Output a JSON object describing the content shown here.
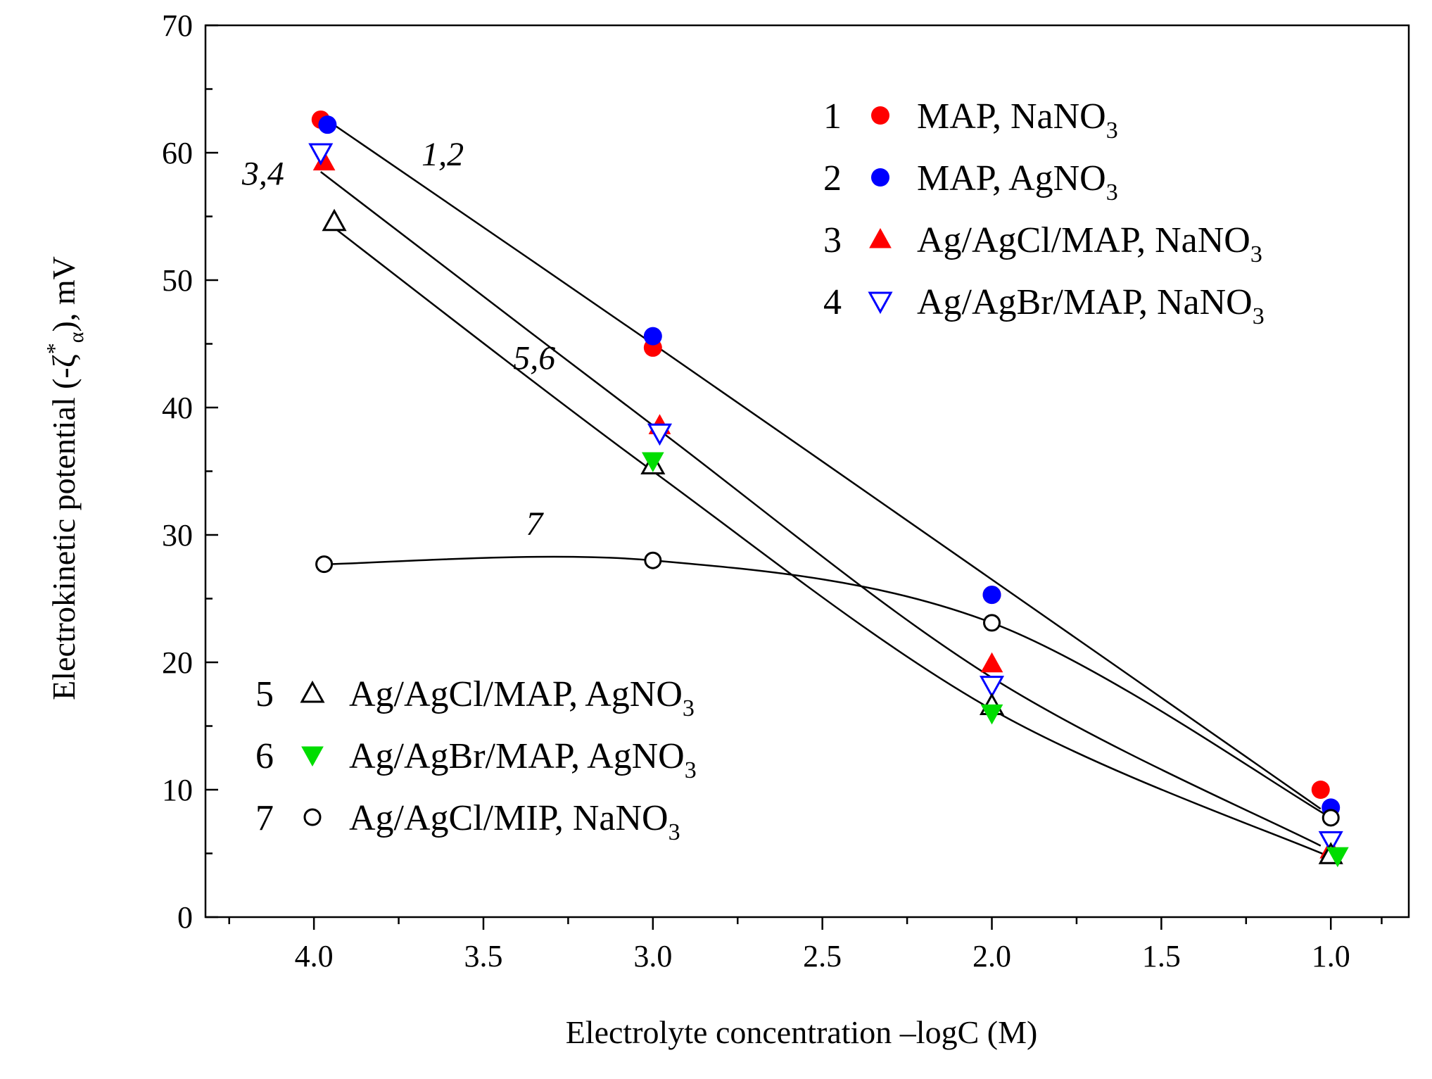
{
  "chart_data": {
    "type": "scatter",
    "xlabel": "Electrolyte concentration –logC (M)",
    "ylabel_prefix": "Electrokinetic potential (-ζ",
    "ylabel_superscript": "*",
    "ylabel_subscript": "α",
    "ylabel_suffix": "), mV",
    "xlim": [
      4.32,
      0.77
    ],
    "ylim": [
      0,
      70
    ],
    "x_reversed": true,
    "x_ticks": [
      4.0,
      3.5,
      3.0,
      2.5,
      2.0,
      1.5,
      1.0
    ],
    "x_tick_labels": [
      "4.0",
      "3.5",
      "3.0",
      "2.5",
      "2.0",
      "1.5",
      "1.0"
    ],
    "y_ticks": [
      0,
      10,
      20,
      30,
      40,
      50,
      60,
      70
    ],
    "y_tick_labels": [
      "0",
      "10",
      "20",
      "30",
      "40",
      "50",
      "60",
      "70"
    ],
    "series": [
      {
        "id": "1",
        "name": "MAP, NaNO",
        "sub": "3",
        "marker": "circle-filled",
        "color": "#ff0000",
        "points": [
          [
            3.98,
            62.6
          ],
          [
            3.0,
            44.7
          ],
          [
            2.0,
            25.3
          ],
          [
            1.03,
            10.0
          ]
        ]
      },
      {
        "id": "2",
        "name": "MAP, AgNO",
        "sub": "3",
        "marker": "circle-filled",
        "color": "#0000ff",
        "points": [
          [
            3.96,
            62.2
          ],
          [
            3.0,
            45.6
          ],
          [
            2.0,
            25.3
          ],
          [
            1.0,
            8.6
          ]
        ]
      },
      {
        "id": "3",
        "name": "Ag/AgCl/MAP, NaNO",
        "sub": "3",
        "marker": "triangle-up-filled",
        "color": "#ff0000",
        "points": [
          [
            3.97,
            59.3
          ],
          [
            2.98,
            38.6
          ],
          [
            2.0,
            19.9
          ],
          [
            1.0,
            5.3
          ]
        ]
      },
      {
        "id": "4",
        "name": "Ag/AgBr/MAP, NaNO",
        "sub": "3",
        "marker": "triangle-down-open",
        "color": "#0000ff",
        "points": [
          [
            3.98,
            60.0
          ],
          [
            2.98,
            38.0
          ],
          [
            2.0,
            18.2
          ],
          [
            1.0,
            6.0
          ]
        ]
      },
      {
        "id": "5",
        "name": "Ag/AgCl/MAP, AgNO",
        "sub": "3",
        "marker": "triangle-up-open",
        "color": "#000000",
        "points": [
          [
            3.94,
            54.6
          ],
          [
            3.0,
            35.5
          ],
          [
            2.0,
            16.6
          ],
          [
            1.0,
            4.9
          ]
        ]
      },
      {
        "id": "6",
        "name": "Ag/AgBr/MAP, AgNO",
        "sub": "3",
        "marker": "triangle-down-filled",
        "color": "#00dd00",
        "points": [
          [
            3.0,
            35.8
          ],
          [
            2.0,
            16.0
          ],
          [
            0.98,
            4.8
          ]
        ]
      },
      {
        "id": "7",
        "name": "Ag/AgCl/MIP, NaNO",
        "sub": "3",
        "marker": "circle-open",
        "color": "#000000",
        "points": [
          [
            3.97,
            27.7
          ],
          [
            3.0,
            28.0
          ],
          [
            2.0,
            23.1
          ],
          [
            1.0,
            7.8
          ]
        ]
      }
    ],
    "fit_lines": [
      {
        "name": "1,2",
        "points": [
          [
            3.98,
            62.9
          ],
          [
            3.0,
            45.0
          ],
          [
            2.0,
            26.5
          ],
          [
            1.03,
            8.5
          ]
        ]
      },
      {
        "name": "3,4",
        "points": [
          [
            3.98,
            58.5
          ],
          [
            3.0,
            38.6
          ],
          [
            2.0,
            18.8
          ],
          [
            1.03,
            5.6
          ]
        ]
      },
      {
        "name": "5,6",
        "points": [
          [
            3.95,
            54.3
          ],
          [
            3.0,
            35.0
          ],
          [
            2.0,
            16.3
          ],
          [
            1.0,
            4.7
          ]
        ]
      },
      {
        "name": "7",
        "points": [
          [
            3.97,
            27.7
          ],
          [
            3.0,
            28.0
          ],
          [
            2.0,
            23.1
          ],
          [
            1.0,
            7.8
          ]
        ]
      }
    ],
    "curve_labels": [
      {
        "text": "1,2",
        "x": 3.62,
        "y": 59.0
      },
      {
        "text": "3,4",
        "x": 4.15,
        "y": 57.5
      },
      {
        "text": "5,6",
        "x": 3.35,
        "y": 43.0
      },
      {
        "text": "7",
        "x": 3.35,
        "y": 30.0
      }
    ],
    "legend_top": [
      "1",
      "2",
      "3",
      "4"
    ],
    "legend_bottom": [
      "5",
      "6",
      "7"
    ]
  }
}
